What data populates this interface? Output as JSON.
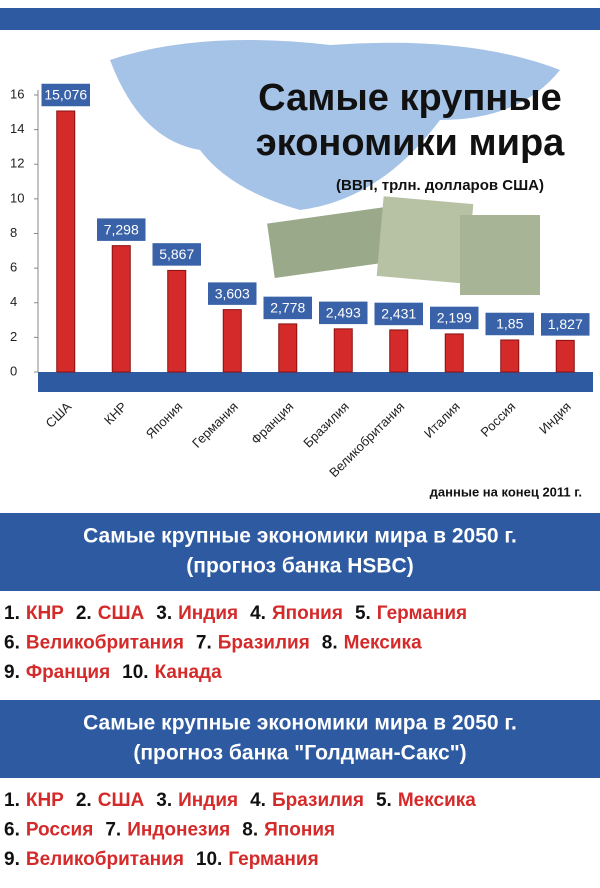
{
  "chart_data": {
    "type": "bar",
    "title": "Самые крупные экономики мира",
    "subtitle": "(ВВП, трлн. долларов США)",
    "note": "данные на конец 2011 г.",
    "categories": [
      "США",
      "КНР",
      "Япония",
      "Германия",
      "Франция",
      "Бразилия",
      "Великобритания",
      "Италия",
      "Россия",
      "Индия"
    ],
    "values": [
      15.076,
      7.298,
      5.867,
      3.603,
      2.778,
      2.493,
      2.431,
      2.199,
      1.85,
      1.827
    ],
    "value_labels": [
      "15,076",
      "7,298",
      "5,867",
      "3,603",
      "2,778",
      "2,493",
      "2,431",
      "2,199",
      "1,85",
      "1,827"
    ],
    "color": "#d42a2a",
    "ylim": [
      0,
      16
    ],
    "yticks": [
      0,
      2,
      4,
      6,
      8,
      10,
      12,
      14,
      16
    ]
  },
  "hsbc": {
    "title": "Самые крупные экономики мира в 2050 г.",
    "subtitle": "(прогноз банка HSBC)",
    "lines": [
      [
        {
          "rank": "1.",
          "name": "КНР"
        },
        {
          "rank": "2.",
          "name": "США"
        },
        {
          "rank": "3.",
          "name": "Индия"
        },
        {
          "rank": "4.",
          "name": "Япония"
        },
        {
          "rank": "5.",
          "name": "Германия"
        }
      ],
      [
        {
          "rank": "6.",
          "name": "Великобритания"
        },
        {
          "rank": "7.",
          "name": "Бразилия"
        },
        {
          "rank": "8.",
          "name": "Мексика"
        }
      ],
      [
        {
          "rank": "9.",
          "name": "Франция"
        },
        {
          "rank": "10.",
          "name": "Канада"
        }
      ]
    ]
  },
  "goldman": {
    "title": "Самые крупные экономики мира в 2050 г.",
    "subtitle": "(прогноз банка \"Голдман-Сакс\")",
    "lines": [
      [
        {
          "rank": "1.",
          "name": "КНР"
        },
        {
          "rank": "2.",
          "name": "США"
        },
        {
          "rank": "3.",
          "name": "Индия"
        },
        {
          "rank": "4.",
          "name": "Бразилия"
        },
        {
          "rank": "5.",
          "name": "Мексика"
        }
      ],
      [
        {
          "rank": "6.",
          "name": "Россия"
        },
        {
          "rank": "7.",
          "name": "Индонезия"
        },
        {
          "rank": "8.",
          "name": "Япония"
        }
      ],
      [
        {
          "rank": "9.",
          "name": "Великобритания"
        },
        {
          "rank": "10.",
          "name": "Германия"
        }
      ]
    ]
  }
}
